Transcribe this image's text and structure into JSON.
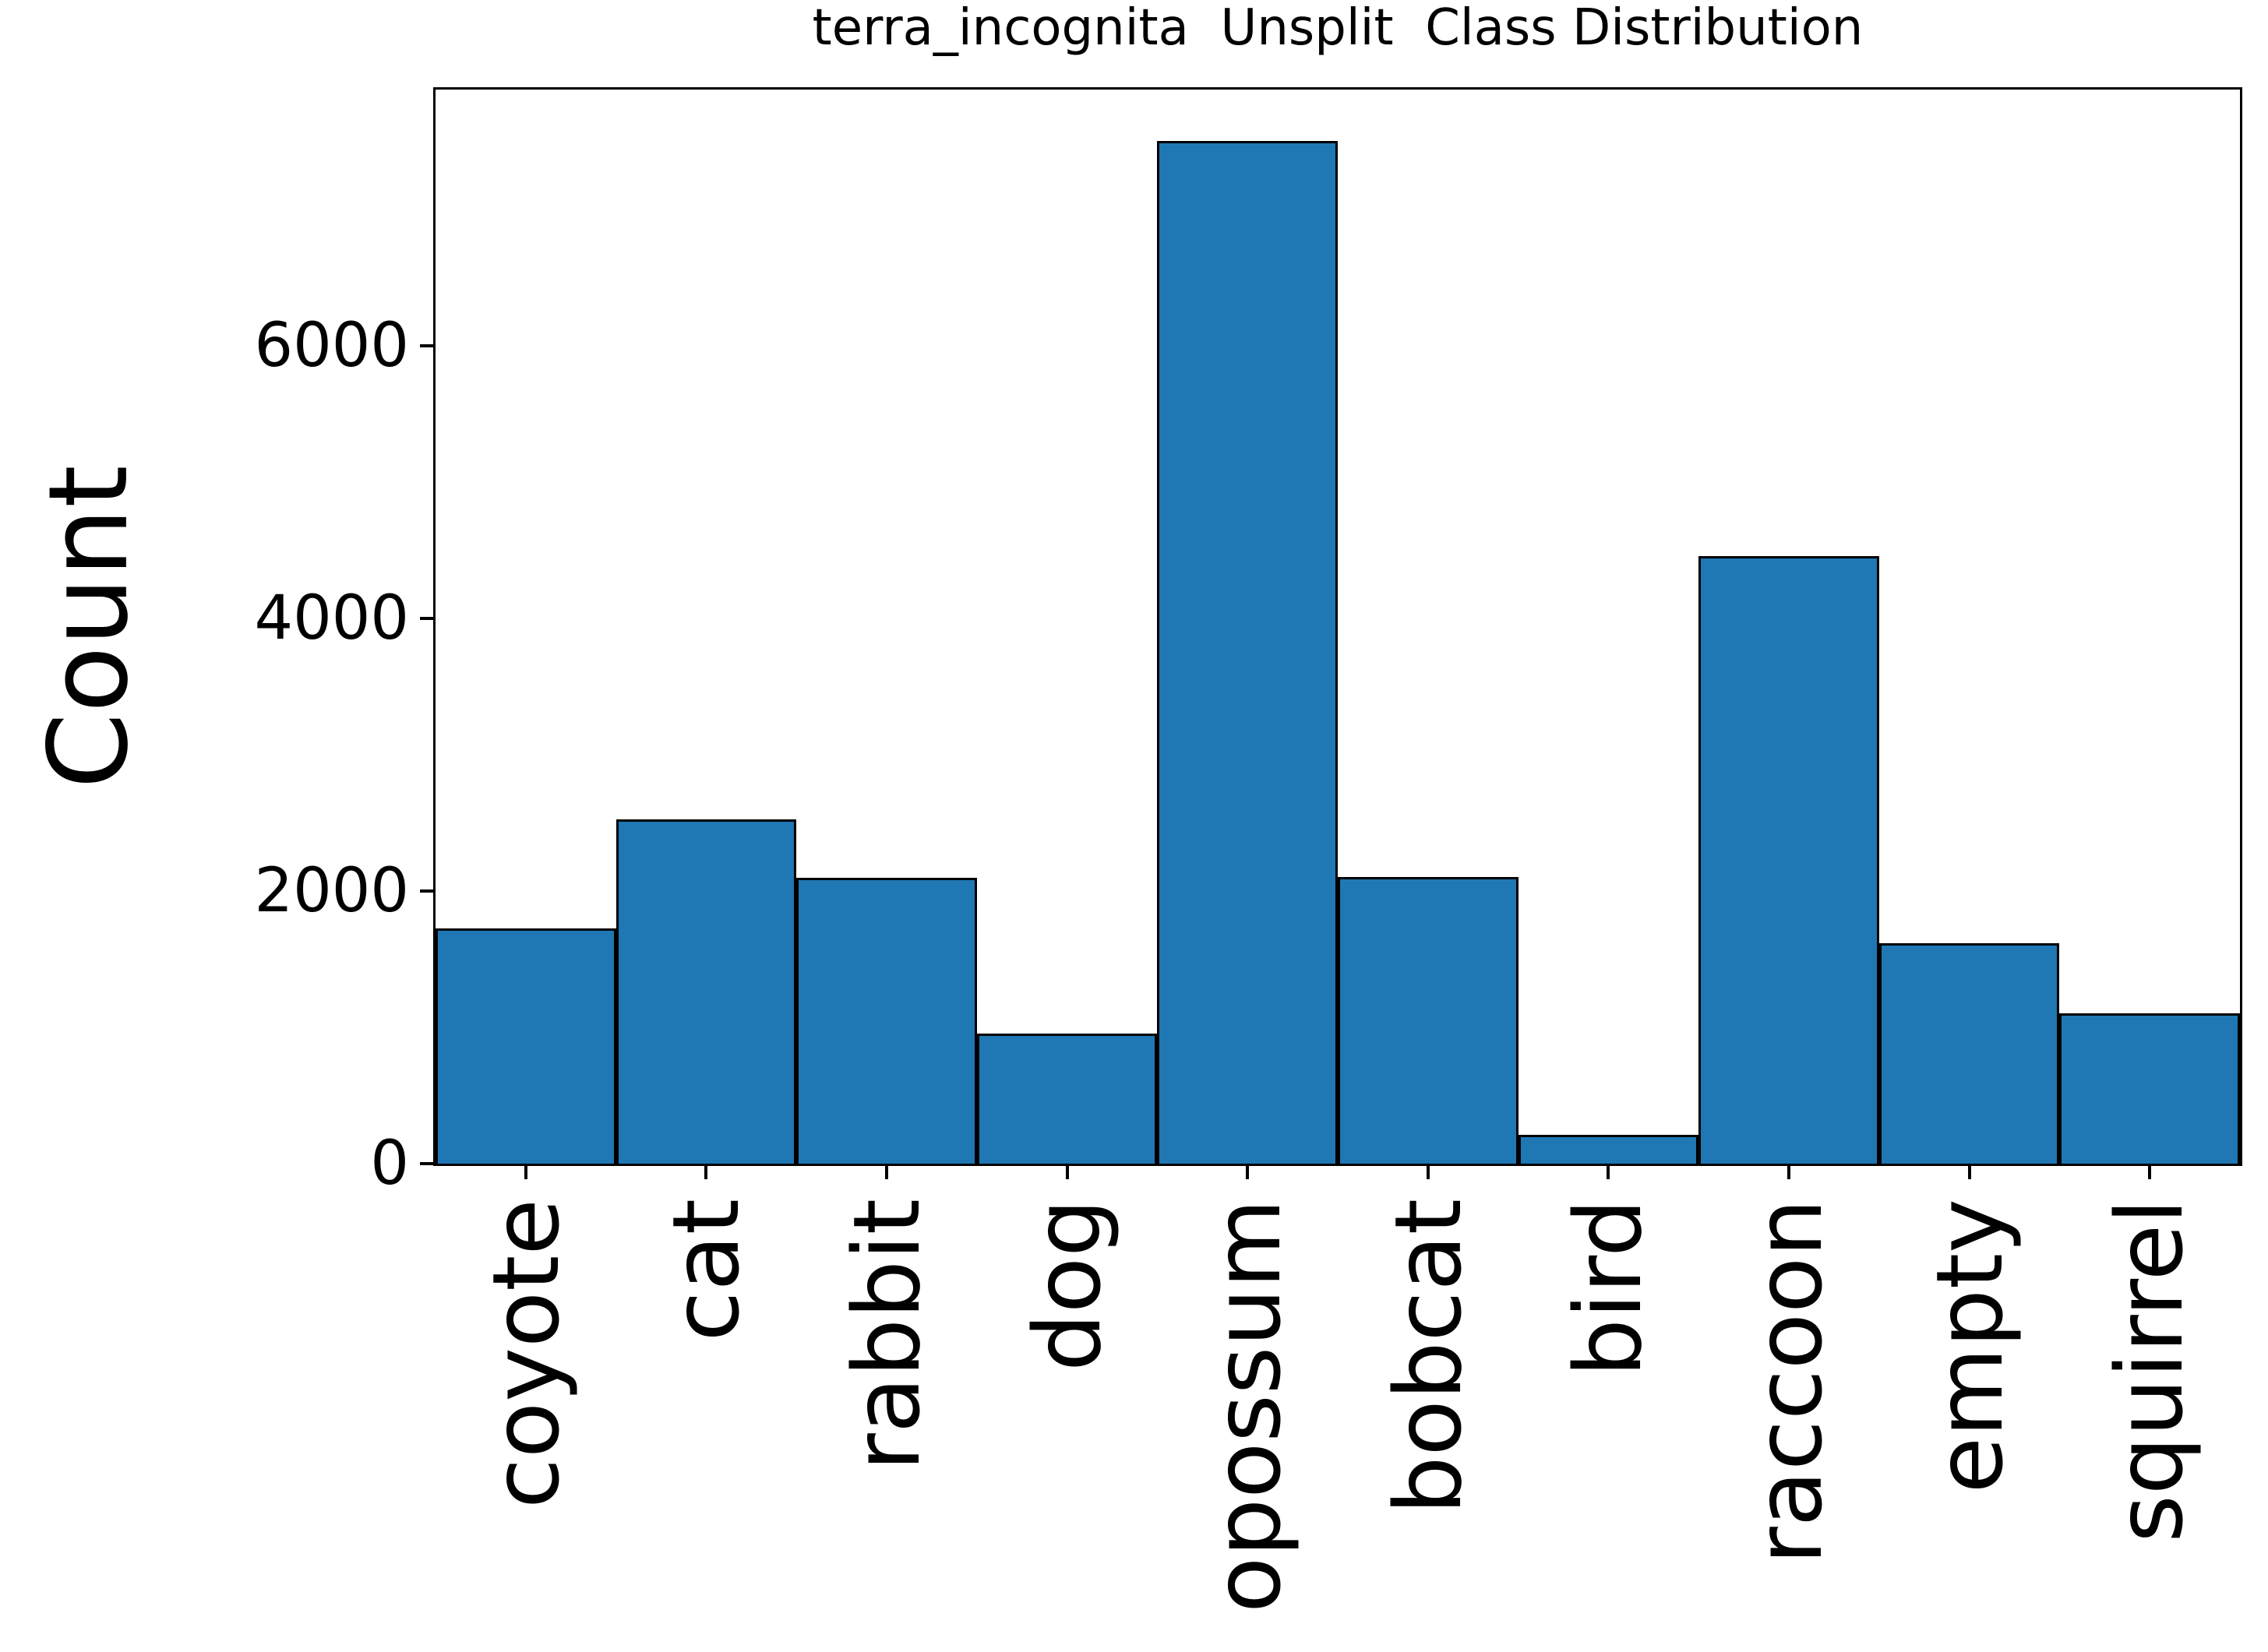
{
  "figure": {
    "background_color": "#ffffff",
    "text_color": "#000000"
  },
  "chart_data": {
    "type": "bar",
    "title": "terra_incognita  Unsplit  Class Distribution",
    "xlabel": "",
    "ylabel": "Count",
    "categories": [
      "coyote",
      "cat",
      "rabbit",
      "dog",
      "opossum",
      "bobcat",
      "bird",
      "raccoon",
      "empty",
      "squirrel"
    ],
    "values": [
      1725,
      2525,
      2100,
      955,
      7505,
      2105,
      210,
      4460,
      1620,
      1105
    ],
    "yticks": [
      0,
      2000,
      4000,
      6000
    ],
    "ylim": [
      0,
      7880
    ],
    "bar_color": "#1f77b4",
    "bar_edge_color": "#000000",
    "x_tick_rotation_deg": 90,
    "grid": "off",
    "legend": "none"
  }
}
